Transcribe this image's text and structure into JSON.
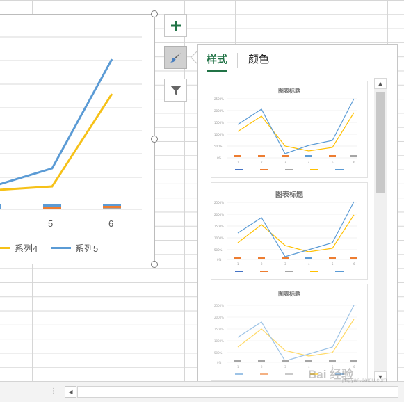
{
  "chart_data": {
    "type": "line",
    "categories": [
      "5",
      "6"
    ],
    "series": [
      {
        "name": "系列4",
        "color": "#f6c118"
      },
      {
        "name": "系列5",
        "color": "#5b9bd5"
      }
    ],
    "tick_labels": [
      "5",
      "6"
    ]
  },
  "side_buttons": {
    "add_elements_icon": "plus-icon",
    "styles_icon": "brush-icon",
    "filter_icon": "funnel-icon"
  },
  "panel": {
    "tabs": [
      {
        "label": "样式",
        "active": true
      },
      {
        "label": "颜色",
        "active": false
      }
    ],
    "gallery": [
      {
        "title": "图表标题"
      },
      {
        "title": "图表标题"
      },
      {
        "title": "图表标题"
      }
    ]
  },
  "colors": {
    "accent": "#217346",
    "series_blue": "#5b9bd5",
    "series_orange": "#ed7d31",
    "series_gray": "#a5a5a5",
    "series_yellow": "#ffc000"
  },
  "watermark": {
    "text": "Bai 经验",
    "sub": "jingyan.baidu.com"
  }
}
